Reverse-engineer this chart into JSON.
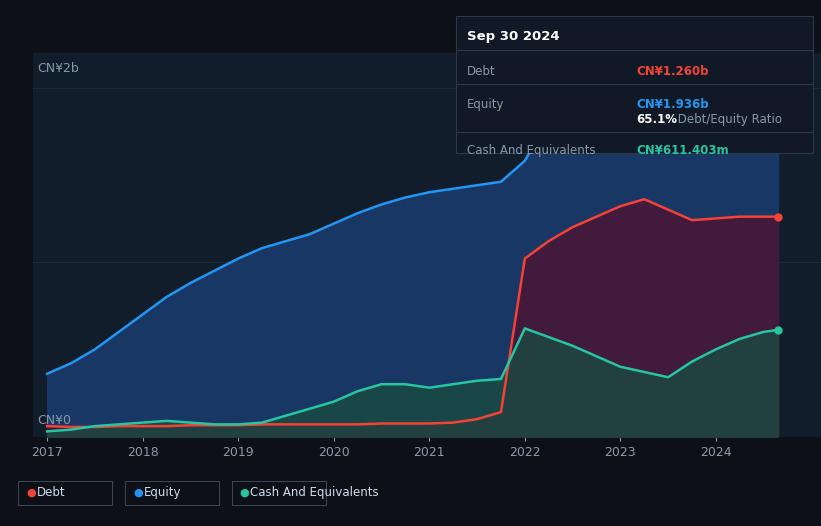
{
  "bg_color": "#0d1117",
  "plot_bg_color": "#111d2b",
  "grid_color": "#1e2d3d",
  "years": [
    2017.0,
    2017.25,
    2017.5,
    2017.75,
    2018.0,
    2018.25,
    2018.5,
    2018.75,
    2019.0,
    2019.25,
    2019.5,
    2019.75,
    2020.0,
    2020.25,
    2020.5,
    2020.75,
    2021.0,
    2021.25,
    2021.5,
    2021.75,
    2022.0,
    2022.25,
    2022.5,
    2022.75,
    2023.0,
    2023.25,
    2023.5,
    2023.75,
    2024.0,
    2024.25,
    2024.5,
    2024.65
  ],
  "equity": [
    0.36,
    0.42,
    0.5,
    0.6,
    0.7,
    0.8,
    0.88,
    0.95,
    1.02,
    1.08,
    1.12,
    1.16,
    1.22,
    1.28,
    1.33,
    1.37,
    1.4,
    1.42,
    1.44,
    1.46,
    1.58,
    1.82,
    1.97,
    2.07,
    2.12,
    2.02,
    1.94,
    1.9,
    1.91,
    1.93,
    1.935,
    1.936
  ],
  "debt": [
    0.06,
    0.055,
    0.055,
    0.06,
    0.06,
    0.06,
    0.065,
    0.065,
    0.065,
    0.07,
    0.07,
    0.07,
    0.07,
    0.07,
    0.075,
    0.075,
    0.075,
    0.08,
    0.1,
    0.14,
    1.02,
    1.12,
    1.2,
    1.26,
    1.32,
    1.36,
    1.3,
    1.24,
    1.25,
    1.26,
    1.26,
    1.26
  ],
  "cash": [
    0.03,
    0.04,
    0.06,
    0.07,
    0.08,
    0.09,
    0.08,
    0.07,
    0.07,
    0.08,
    0.12,
    0.16,
    0.2,
    0.26,
    0.3,
    0.3,
    0.28,
    0.3,
    0.32,
    0.33,
    0.62,
    0.57,
    0.52,
    0.46,
    0.4,
    0.37,
    0.34,
    0.43,
    0.5,
    0.56,
    0.6,
    0.611
  ],
  "equity_color": "#2196f3",
  "debt_color": "#f44336",
  "cash_color": "#26c6a2",
  "equity_fill_color": "#1a3a6b",
  "debt_fill_color": "#4a1535",
  "cash_fill_color": "#1a4a40",
  "ylim": [
    0,
    2.2
  ],
  "xlim": [
    2016.85,
    2025.1
  ],
  "ytick_labels": [
    "CN¥0",
    "CN¥2b"
  ],
  "ytick_values": [
    0,
    2
  ],
  "xtick_years": [
    2017,
    2018,
    2019,
    2020,
    2021,
    2022,
    2023,
    2024
  ],
  "tooltip_date": "Sep 30 2024",
  "tooltip_debt_label": "Debt",
  "tooltip_debt_value": "CN¥1.260b",
  "tooltip_equity_label": "Equity",
  "tooltip_equity_value": "CN¥1.936b",
  "tooltip_ratio_bold": "65.1%",
  "tooltip_ratio_text": " Debt/Equity Ratio",
  "tooltip_cash_label": "Cash And Equivalents",
  "tooltip_cash_value": "CN¥611.403m",
  "legend_items": [
    {
      "label": "Debt",
      "color": "#f44336"
    },
    {
      "label": "Equity",
      "color": "#2196f3"
    },
    {
      "label": "Cash And Equivalents",
      "color": "#26c6a2"
    }
  ],
  "line_width": 1.8,
  "tooltip_bg": "#111927",
  "tooltip_border": "#2a3a4a",
  "text_muted": "#8899aa",
  "text_white": "#ffffff",
  "text_legend": "#ccddee"
}
